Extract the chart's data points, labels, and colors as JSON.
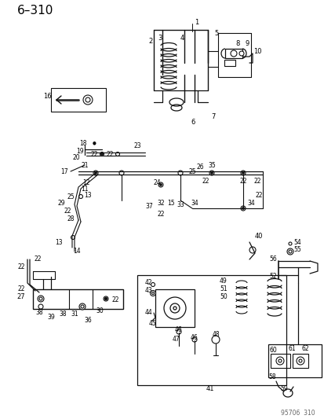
{
  "title": "6–310",
  "watermark": "95706  310",
  "bg_color": "#ffffff",
  "fig_width": 4.14,
  "fig_height": 5.33,
  "dpi": 100
}
